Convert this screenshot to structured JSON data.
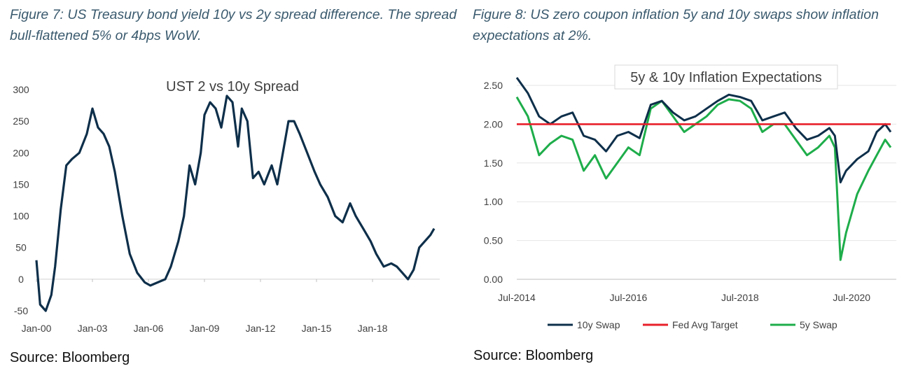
{
  "left_panel": {
    "caption": "Figure 7: US Treasury bond yield 10y vs 2y spread difference. The spread bull-flattened 5% or 4bps WoW.",
    "source": "Source: Bloomberg"
  },
  "right_panel": {
    "caption": "Figure 8: US zero coupon inflation 5y and 10y swaps show inflation expectations at 2%.",
    "source": "Source: Bloomberg"
  },
  "chart_data": [
    {
      "type": "line",
      "title": "UST 2 vs 10y Spread",
      "xlabel": "",
      "ylabel": "",
      "ylim": [
        -50,
        300
      ],
      "yticks": [
        "300",
        "250",
        "200",
        "150",
        "100",
        "50",
        "0",
        "-50"
      ],
      "xticks": [
        "Jan-00",
        "Jan-03",
        "Jan-06",
        "Jan-09",
        "Jan-12",
        "Jan-15",
        "Jan-18"
      ],
      "grid": false,
      "series": [
        {
          "color": "#0e2f4a",
          "x": [
            2000.0,
            2000.2,
            2000.5,
            2000.8,
            2001.0,
            2001.3,
            2001.6,
            2001.9,
            2002.3,
            2002.7,
            2003.0,
            2003.3,
            2003.6,
            2003.9,
            2004.2,
            2004.6,
            2005.0,
            2005.4,
            2005.8,
            2006.1,
            2006.5,
            2006.9,
            2007.2,
            2007.6,
            2007.9,
            2008.2,
            2008.5,
            2008.8,
            2009.0,
            2009.3,
            2009.6,
            2009.9,
            2010.2,
            2010.5,
            2010.8,
            2011.0,
            2011.3,
            2011.6,
            2011.9,
            2012.2,
            2012.6,
            2012.9,
            2013.2,
            2013.5,
            2013.8,
            2014.1,
            2014.5,
            2014.9,
            2015.2,
            2015.6,
            2016.0,
            2016.4,
            2016.8,
            2017.1,
            2017.5,
            2017.9,
            2018.2,
            2018.6,
            2019.0,
            2019.3,
            2019.6,
            2019.9,
            2020.2,
            2020.5,
            2020.8,
            2021.1,
            2021.3
          ],
          "y": [
            30,
            -40,
            -50,
            -25,
            20,
            110,
            180,
            190,
            200,
            230,
            270,
            240,
            230,
            210,
            170,
            100,
            40,
            10,
            -5,
            -10,
            -5,
            0,
            20,
            60,
            100,
            180,
            150,
            200,
            260,
            280,
            270,
            240,
            290,
            280,
            210,
            270,
            250,
            160,
            170,
            150,
            180,
            150,
            200,
            250,
            250,
            230,
            200,
            170,
            150,
            130,
            100,
            90,
            120,
            100,
            80,
            60,
            40,
            20,
            25,
            20,
            10,
            0,
            15,
            50,
            60,
            70,
            80
          ]
        }
      ]
    },
    {
      "type": "line",
      "title": "5y & 10y Inflation Expectations",
      "xlabel": "",
      "ylabel": "",
      "ylim": [
        0,
        2.5
      ],
      "yticks": [
        "2.50",
        "2.00",
        "1.50",
        "1.00",
        "0.50",
        "0.00"
      ],
      "xticks": [
        "Jul-2014",
        "Jul-2016",
        "Jul-2018",
        "Jul-2020"
      ],
      "grid": true,
      "legend_position": "bottom",
      "series": [
        {
          "name": "10y Swap",
          "color": "#0e2f4a",
          "x": [
            2014.5,
            2014.7,
            2014.9,
            2015.1,
            2015.3,
            2015.5,
            2015.7,
            2015.9,
            2016.1,
            2016.3,
            2016.5,
            2016.7,
            2016.9,
            2017.1,
            2017.3,
            2017.5,
            2017.7,
            2017.9,
            2018.1,
            2018.3,
            2018.5,
            2018.7,
            2018.9,
            2019.1,
            2019.3,
            2019.5,
            2019.7,
            2019.9,
            2020.1,
            2020.2,
            2020.3,
            2020.4,
            2020.6,
            2020.8,
            2020.95,
            2021.1,
            2021.2
          ],
          "y": [
            2.6,
            2.4,
            2.1,
            2.0,
            2.1,
            2.15,
            1.85,
            1.8,
            1.65,
            1.85,
            1.9,
            1.82,
            2.25,
            2.3,
            2.15,
            2.05,
            2.1,
            2.2,
            2.3,
            2.38,
            2.35,
            2.3,
            2.05,
            2.1,
            2.15,
            1.95,
            1.8,
            1.85,
            1.95,
            1.85,
            1.25,
            1.4,
            1.55,
            1.65,
            1.9,
            2.0,
            1.9
          ]
        },
        {
          "name": "Fed Avg Target",
          "color": "#e8202a",
          "x": [
            2014.5,
            2021.2
          ],
          "y": [
            2.0,
            2.0
          ]
        },
        {
          "name": "5y Swap",
          "color": "#1ead4a",
          "x": [
            2014.5,
            2014.7,
            2014.9,
            2015.1,
            2015.3,
            2015.5,
            2015.7,
            2015.9,
            2016.1,
            2016.3,
            2016.5,
            2016.7,
            2016.9,
            2017.1,
            2017.3,
            2017.5,
            2017.7,
            2017.9,
            2018.1,
            2018.3,
            2018.5,
            2018.7,
            2018.9,
            2019.1,
            2019.3,
            2019.5,
            2019.7,
            2019.9,
            2020.1,
            2020.2,
            2020.3,
            2020.4,
            2020.6,
            2020.8,
            2020.95,
            2021.1,
            2021.2
          ],
          "y": [
            2.35,
            2.1,
            1.6,
            1.75,
            1.85,
            1.8,
            1.4,
            1.6,
            1.3,
            1.5,
            1.7,
            1.6,
            2.2,
            2.3,
            2.1,
            1.9,
            2.0,
            2.1,
            2.25,
            2.32,
            2.3,
            2.2,
            1.9,
            2.0,
            2.0,
            1.8,
            1.6,
            1.7,
            1.85,
            1.7,
            0.25,
            0.6,
            1.1,
            1.4,
            1.6,
            1.8,
            1.7
          ]
        }
      ]
    }
  ]
}
